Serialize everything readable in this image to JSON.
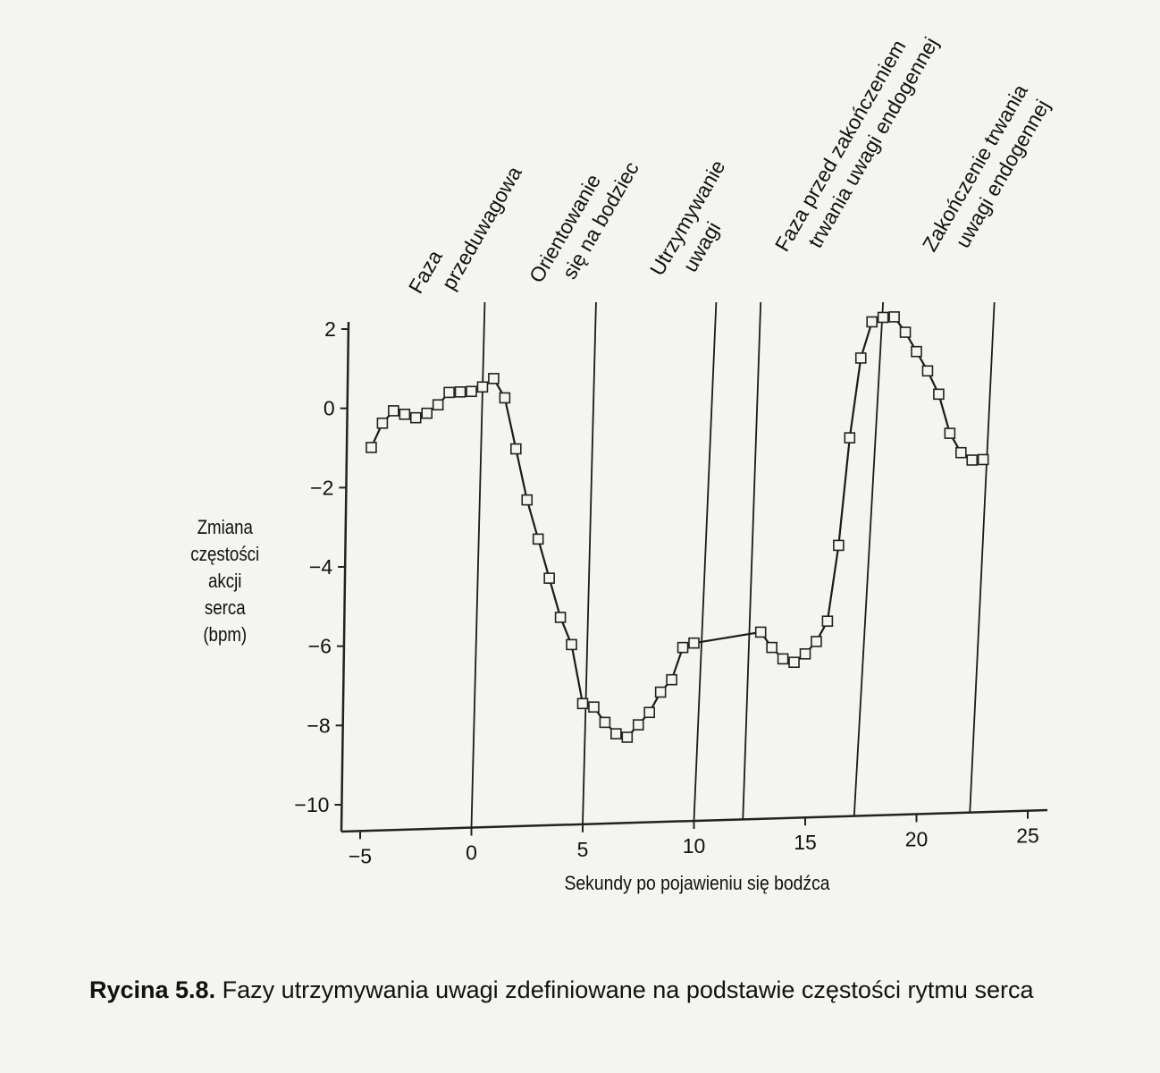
{
  "chart_data": {
    "type": "line",
    "ylabel_lines": [
      "Zmiana",
      "częstości",
      "akcji",
      "serca",
      "(bpm)"
    ],
    "xlabel": "Sekundy po pojawieniu się bodźca",
    "xlim": [
      -5,
      25
    ],
    "ylim": [
      -10,
      2
    ],
    "xticks": [
      -5,
      0,
      5,
      10,
      15,
      20,
      25
    ],
    "yticks": [
      2,
      0,
      -2,
      -4,
      -6,
      -8,
      -10
    ],
    "x_tick_labels": [
      "−5",
      "0",
      "5",
      "10",
      "15",
      "20",
      "25"
    ],
    "y_tick_labels": [
      "2",
      "0",
      "−2",
      "−4",
      "−6",
      "−8",
      "−10"
    ],
    "series": [
      {
        "x": [
          -4.5,
          -4.0,
          -3.5,
          -3.0,
          -2.5,
          -2.0,
          -1.5,
          -1.0,
          -0.5,
          0.0,
          0.5,
          1.0,
          1.5,
          2.0,
          2.5,
          3.0,
          3.5,
          4.0,
          4.5,
          5.0,
          5.5,
          6.0,
          6.5,
          7.0,
          7.5,
          8.0,
          8.5,
          9.0,
          9.5,
          10.0
        ],
        "y": [
          -1.0,
          -0.4,
          -0.1,
          -0.2,
          -0.3,
          -0.2,
          0.0,
          0.3,
          0.3,
          0.3,
          0.4,
          0.6,
          0.1,
          -1.2,
          -2.5,
          -3.5,
          -4.5,
          -5.5,
          -6.2,
          -7.7,
          -7.8,
          -8.2,
          -8.5,
          -8.6,
          -8.3,
          -8.0,
          -7.5,
          -7.2,
          -6.4,
          -6.3
        ]
      },
      {
        "x": [
          13.0,
          13.5,
          14.0,
          14.5,
          15.0,
          15.5,
          16.0,
          16.5,
          17.0,
          17.5,
          18.0,
          18.5,
          19.0,
          19.5,
          20.0,
          20.5,
          21.0,
          21.5,
          22.0,
          22.5,
          23.0
        ],
        "y": [
          -6.1,
          -6.5,
          -6.8,
          -6.9,
          -6.7,
          -6.4,
          -5.9,
          -4.0,
          -1.3,
          0.7,
          1.6,
          1.7,
          1.7,
          1.3,
          0.8,
          0.3,
          -0.3,
          -1.3,
          -1.8,
          -2.0,
          -2.0
        ]
      }
    ],
    "connector": {
      "x": [
        10.0,
        13.0
      ],
      "y": [
        -6.3,
        -6.1
      ]
    },
    "phase_lines": [
      {
        "x_bottom": 0.0,
        "x_top": 0.6
      },
      {
        "x_bottom": 5.0,
        "x_top": 5.6
      },
      {
        "x_bottom": 10.0,
        "x_top": 11.0
      },
      {
        "x_bottom": 12.2,
        "x_top": 13.0
      },
      {
        "x_bottom": 17.2,
        "x_top": 18.5
      },
      {
        "x_bottom": 22.4,
        "x_top": 23.5
      }
    ],
    "phase_labels": [
      {
        "lines": [
          "Faza",
          "przeduwagowa"
        ]
      },
      {
        "lines": [
          "Orientowanie",
          "się na bodziec"
        ]
      },
      {
        "lines": [
          "Utrzymywanie",
          "uwagi"
        ]
      },
      {
        "lines": [
          "Faza przed zakończeniem",
          "trwania uwagi endogennej"
        ]
      },
      {
        "lines": [
          "Zakończenie trwania",
          "uwagi endogennej"
        ]
      }
    ]
  },
  "caption": {
    "lead": "Rycina 5.8.",
    "text": " Fazy utrzymywania uwagi zdefiniowane na podstawie częstości rytmu serca"
  }
}
